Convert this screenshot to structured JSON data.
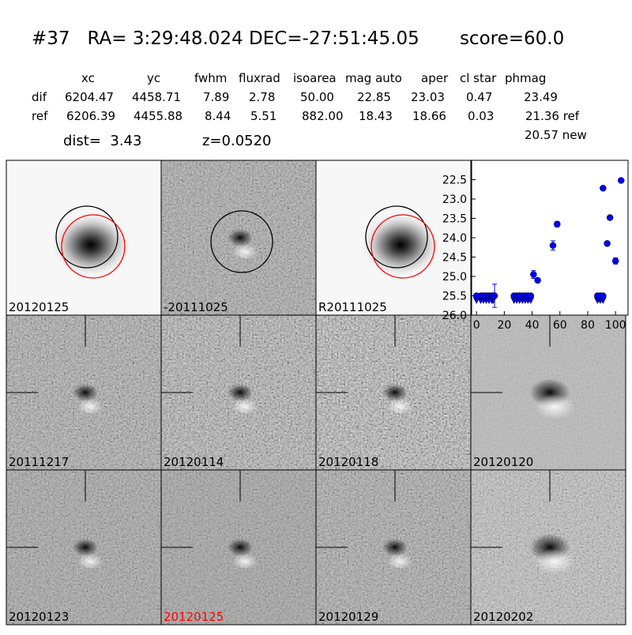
{
  "header": {
    "title": "#37   RA= 3:29:48.024 DEC=-27:51:45.05       score=60.0"
  },
  "table": {
    "columns": [
      "xc",
      "yc",
      "fwhm",
      "fluxrad",
      "isoarea",
      "mag auto",
      "aper",
      "cl star",
      "phmag"
    ],
    "rows": [
      [
        "dif",
        "6204.47",
        "4458.71",
        "7.89",
        "2.78",
        "50.00",
        "22.85",
        "23.03",
        "0.47",
        "23.49"
      ],
      [
        "ref",
        "6206.39",
        "4455.88",
        "8.44",
        "5.51",
        "882.00",
        "18.43",
        "18.66",
        "0.03",
        "21.36 ref"
      ]
    ],
    "extra": "20.57 new"
  },
  "dist": "dist=  3.43",
  "z": "z=0.0520",
  "panels": [
    {
      "label": "20120125"
    },
    {
      "label": "-20111025"
    },
    {
      "label": "R20111025"
    },
    {
      "label": "20111217"
    },
    {
      "label": "20120114"
    },
    {
      "label": "20120118"
    },
    {
      "label": "20120120"
    },
    {
      "label": "20120123"
    },
    {
      "label": "20120125",
      "color": "#ff0000"
    },
    {
      "label": "20120129"
    },
    {
      "label": "20120202"
    }
  ],
  "chart_data": {
    "type": "scatter",
    "xlim": [
      -3.5,
      109
    ],
    "ylim": [
      26,
      22
    ],
    "xticks": [
      0,
      20,
      40,
      60,
      80,
      100
    ],
    "yticks": [
      22.5,
      {
        "value": 23,
        "label": "23.0"
      },
      23.5,
      {
        "value": 24,
        "label": "24.0"
      },
      24.5,
      {
        "value": 25,
        "label": "25.0"
      },
      25.5,
      {
        "value": 26,
        "label": "26.0"
      }
    ],
    "series": [
      {
        "color": "#0000ff",
        "x": [
          13,
          41,
          44,
          55,
          58,
          91,
          94,
          96,
          100,
          104
        ],
        "values": [
          25.5,
          24.95,
          25.1,
          24.2,
          23.65,
          22.72,
          24.15,
          23.48,
          24.6,
          22.52
        ],
        "errors": [
          0.3,
          0.1,
          0.05,
          0.12,
          0.07,
          0.03,
          0.06,
          0.04,
          0.08,
          0.03
        ]
      },
      {
        "color": "#0000ff",
        "marker": "limit",
        "x": [
          0,
          3,
          5,
          7,
          9,
          11,
          12,
          27,
          29,
          31,
          33,
          35,
          37,
          39,
          87,
          89,
          91
        ],
        "values": [
          25.5,
          25.5,
          25.5,
          25.5,
          25.5,
          25.5,
          25.5,
          25.5,
          25.5,
          25.5,
          25.5,
          25.5,
          25.5,
          25.5,
          25.5,
          25.5,
          25.5
        ]
      }
    ]
  }
}
